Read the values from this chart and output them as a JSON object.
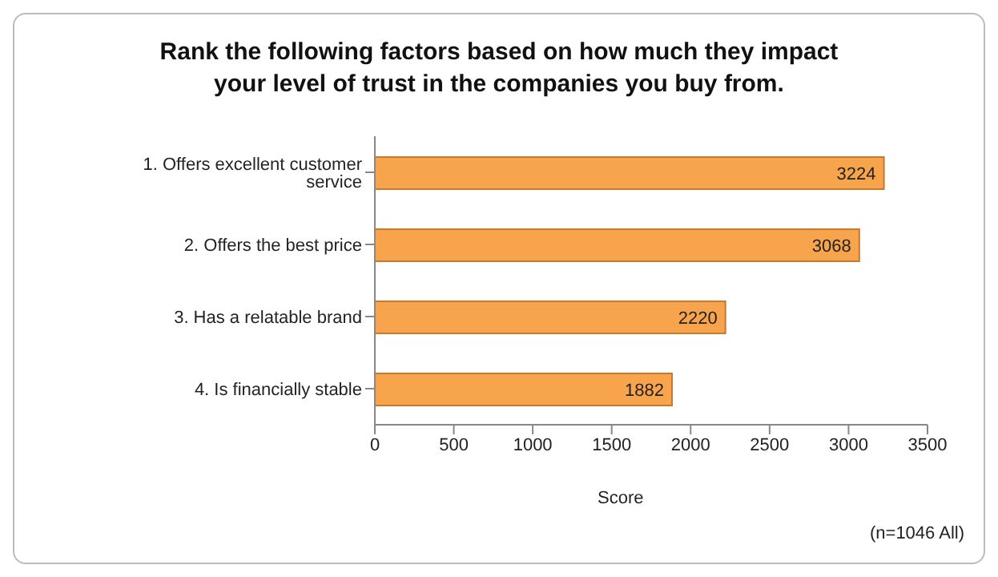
{
  "chart_data": {
    "type": "bar",
    "title": "Rank the following factors based on how much they impact your level of trust in the companies you buy from.",
    "categories": [
      "1. Offers excellent customer service",
      "2. Offers the best price",
      "3. Has a relatable brand",
      "4. Is financially stable"
    ],
    "values": [
      3224,
      3068,
      2220,
      1882
    ],
    "color": "#f7a44c",
    "orientation": "horizontal",
    "xlim": [
      0,
      3500
    ],
    "xticks": [
      0,
      500,
      1000,
      1500,
      2000,
      2500,
      3000,
      3500
    ],
    "xlabel": "Score",
    "data_labels": true,
    "annotations": [
      "(n=1046 All)"
    ]
  }
}
